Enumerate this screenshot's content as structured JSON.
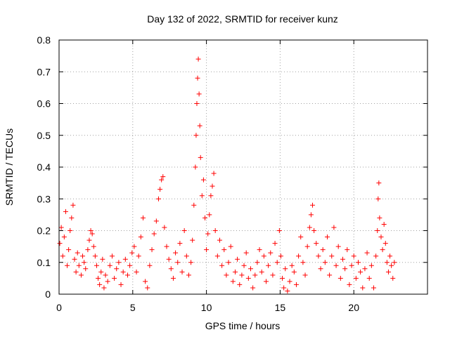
{
  "chart_data": {
    "type": "scatter",
    "title": "Day 132 of 2022, SRMTID for receiver kunz",
    "xlabel": "GPS time / hours",
    "ylabel": "SRMTID / TECUs",
    "xlim": [
      0,
      25
    ],
    "ylim": [
      0,
      0.8
    ],
    "xticks": [
      0,
      5,
      10,
      15,
      20
    ],
    "xtick_labels": [
      "0",
      "5",
      "10",
      "15",
      "20"
    ],
    "yticks": [
      0,
      0.1,
      0.2,
      0.3,
      0.4,
      0.5,
      0.6,
      0.7,
      0.8
    ],
    "ytick_labels": [
      "0",
      "0.1",
      "0.2",
      "0.3",
      "0.4",
      "0.5",
      "0.6",
      "0.7",
      "0.8"
    ],
    "grid": true,
    "marker": "+",
    "marker_color": "#ff0000",
    "series": [
      {
        "name": "SRMTID",
        "points": [
          [
            0.05,
            0.16
          ],
          [
            0.15,
            0.21
          ],
          [
            0.25,
            0.12
          ],
          [
            0.35,
            0.18
          ],
          [
            0.45,
            0.26
          ],
          [
            0.55,
            0.09
          ],
          [
            0.65,
            0.14
          ],
          [
            0.75,
            0.2
          ],
          [
            0.85,
            0.24
          ],
          [
            0.95,
            0.28
          ],
          [
            1.05,
            0.11
          ],
          [
            1.15,
            0.07
          ],
          [
            1.25,
            0.13
          ],
          [
            1.35,
            0.09
          ],
          [
            1.5,
            0.06
          ],
          [
            1.6,
            0.12
          ],
          [
            1.7,
            0.1
          ],
          [
            1.8,
            0.08
          ],
          [
            1.95,
            0.14
          ],
          [
            2.05,
            0.17
          ],
          [
            2.15,
            0.2
          ],
          [
            2.25,
            0.19
          ],
          [
            2.35,
            0.15
          ],
          [
            2.45,
            0.12
          ],
          [
            2.55,
            0.09
          ],
          [
            2.65,
            0.05
          ],
          [
            2.75,
            0.03
          ],
          [
            2.85,
            0.07
          ],
          [
            2.95,
            0.11
          ],
          [
            3.05,
            0.02
          ],
          [
            3.15,
            0.06
          ],
          [
            3.3,
            0.04
          ],
          [
            3.45,
            0.09
          ],
          [
            3.6,
            0.12
          ],
          [
            3.75,
            0.05
          ],
          [
            3.9,
            0.08
          ],
          [
            4.05,
            0.1
          ],
          [
            4.2,
            0.03
          ],
          [
            4.35,
            0.07
          ],
          [
            4.5,
            0.11
          ],
          [
            4.65,
            0.06
          ],
          [
            4.8,
            0.09
          ],
          [
            4.95,
            0.13
          ],
          [
            5.1,
            0.15
          ],
          [
            5.25,
            0.07
          ],
          [
            5.4,
            0.12
          ],
          [
            5.55,
            0.18
          ],
          [
            5.7,
            0.24
          ],
          [
            5.85,
            0.04
          ],
          [
            6.0,
            0.02
          ],
          [
            6.15,
            0.09
          ],
          [
            6.3,
            0.14
          ],
          [
            6.45,
            0.19
          ],
          [
            6.6,
            0.23
          ],
          [
            6.75,
            0.3
          ],
          [
            6.85,
            0.33
          ],
          [
            6.95,
            0.36
          ],
          [
            7.05,
            0.37
          ],
          [
            7.15,
            0.21
          ],
          [
            7.3,
            0.15
          ],
          [
            7.45,
            0.11
          ],
          [
            7.6,
            0.08
          ],
          [
            7.75,
            0.05
          ],
          [
            7.9,
            0.13
          ],
          [
            8.05,
            0.1
          ],
          [
            8.2,
            0.16
          ],
          [
            8.35,
            0.07
          ],
          [
            8.5,
            0.2
          ],
          [
            8.65,
            0.12
          ],
          [
            8.8,
            0.06
          ],
          [
            8.95,
            0.1
          ],
          [
            9.05,
            0.17
          ],
          [
            9.15,
            0.28
          ],
          [
            9.25,
            0.4
          ],
          [
            9.3,
            0.5
          ],
          [
            9.35,
            0.6
          ],
          [
            9.4,
            0.68
          ],
          [
            9.45,
            0.74
          ],
          [
            9.5,
            0.63
          ],
          [
            9.55,
            0.53
          ],
          [
            9.6,
            0.43
          ],
          [
            9.7,
            0.31
          ],
          [
            9.8,
            0.36
          ],
          [
            9.9,
            0.24
          ],
          [
            10.0,
            0.14
          ],
          [
            10.1,
            0.19
          ],
          [
            10.2,
            0.25
          ],
          [
            10.3,
            0.31
          ],
          [
            10.4,
            0.34
          ],
          [
            10.5,
            0.38
          ],
          [
            10.6,
            0.2
          ],
          [
            10.75,
            0.12
          ],
          [
            10.9,
            0.17
          ],
          [
            11.05,
            0.09
          ],
          [
            11.2,
            0.14
          ],
          [
            11.35,
            0.06
          ],
          [
            11.5,
            0.1
          ],
          [
            11.65,
            0.15
          ],
          [
            11.8,
            0.04
          ],
          [
            11.95,
            0.07
          ],
          [
            12.1,
            0.11
          ],
          [
            12.25,
            0.03
          ],
          [
            12.4,
            0.06
          ],
          [
            12.55,
            0.09
          ],
          [
            12.7,
            0.13
          ],
          [
            12.85,
            0.05
          ],
          [
            13.0,
            0.08
          ],
          [
            13.15,
            0.02
          ],
          [
            13.3,
            0.06
          ],
          [
            13.45,
            0.1
          ],
          [
            13.6,
            0.14
          ],
          [
            13.75,
            0.07
          ],
          [
            13.9,
            0.12
          ],
          [
            14.05,
            0.04
          ],
          [
            14.2,
            0.09
          ],
          [
            14.35,
            0.13
          ],
          [
            14.5,
            0.06
          ],
          [
            14.65,
            0.16
          ],
          [
            14.8,
            0.1
          ],
          [
            14.95,
            0.2
          ],
          [
            15.05,
            0.12
          ],
          [
            15.15,
            0.05
          ],
          [
            15.25,
            0.02
          ],
          [
            15.35,
            0.08
          ],
          [
            15.5,
            0.01
          ],
          [
            15.65,
            0.04
          ],
          [
            15.8,
            0.09
          ],
          [
            15.95,
            0.07
          ],
          [
            16.1,
            0.03
          ],
          [
            16.25,
            0.12
          ],
          [
            16.4,
            0.18
          ],
          [
            16.55,
            0.1
          ],
          [
            16.7,
            0.06
          ],
          [
            16.85,
            0.15
          ],
          [
            17.0,
            0.21
          ],
          [
            17.1,
            0.25
          ],
          [
            17.2,
            0.28
          ],
          [
            17.3,
            0.2
          ],
          [
            17.45,
            0.16
          ],
          [
            17.6,
            0.12
          ],
          [
            17.75,
            0.08
          ],
          [
            17.9,
            0.14
          ],
          [
            18.05,
            0.1
          ],
          [
            18.2,
            0.18
          ],
          [
            18.35,
            0.06
          ],
          [
            18.5,
            0.12
          ],
          [
            18.65,
            0.21
          ],
          [
            18.8,
            0.09
          ],
          [
            18.95,
            0.15
          ],
          [
            19.1,
            0.05
          ],
          [
            19.25,
            0.11
          ],
          [
            19.4,
            0.08
          ],
          [
            19.55,
            0.14
          ],
          [
            19.7,
            0.03
          ],
          [
            19.85,
            0.09
          ],
          [
            20.0,
            0.12
          ],
          [
            20.15,
            0.05
          ],
          [
            20.3,
            0.1
          ],
          [
            20.45,
            0.07
          ],
          [
            20.6,
            0.02
          ],
          [
            20.75,
            0.08
          ],
          [
            20.9,
            0.13
          ],
          [
            21.05,
            0.05
          ],
          [
            21.2,
            0.09
          ],
          [
            21.35,
            0.02
          ],
          [
            21.5,
            0.12
          ],
          [
            21.6,
            0.2
          ],
          [
            21.65,
            0.3
          ],
          [
            21.7,
            0.35
          ],
          [
            21.75,
            0.24
          ],
          [
            21.85,
            0.18
          ],
          [
            21.95,
            0.14
          ],
          [
            22.05,
            0.22
          ],
          [
            22.15,
            0.16
          ],
          [
            22.25,
            0.1
          ],
          [
            22.35,
            0.07
          ],
          [
            22.45,
            0.12
          ],
          [
            22.55,
            0.09
          ],
          [
            22.65,
            0.05
          ],
          [
            22.75,
            0.1
          ]
        ]
      }
    ]
  }
}
